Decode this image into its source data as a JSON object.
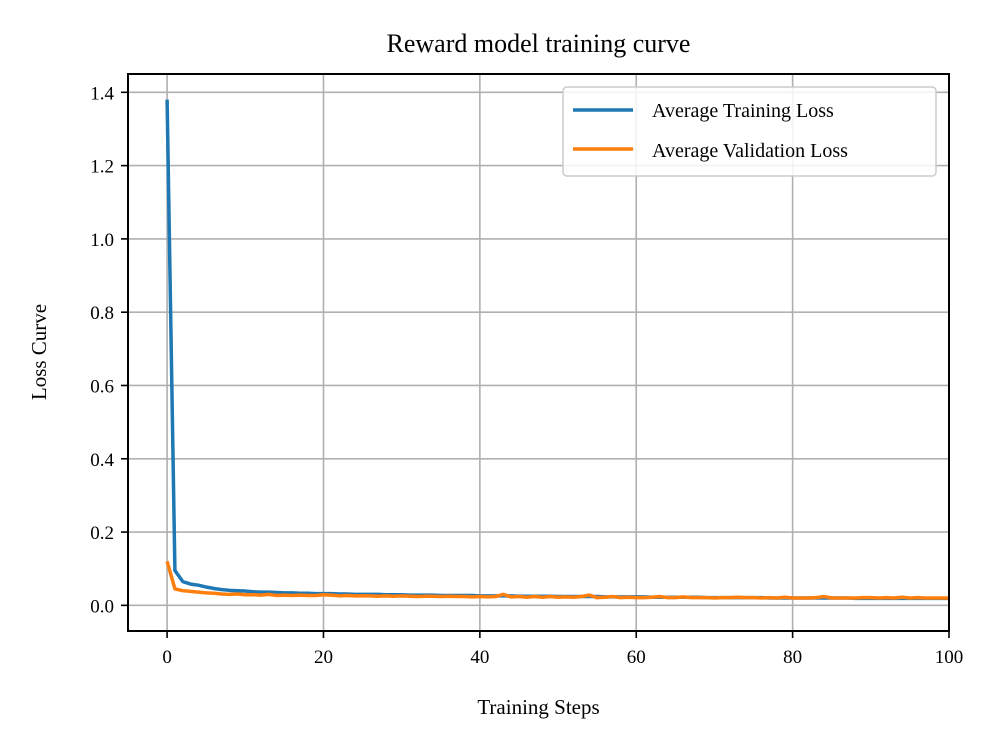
{
  "chart_data": {
    "type": "line",
    "title": "Reward model training curve",
    "xlabel": "Training Steps",
    "ylabel": "Loss Curve",
    "xlim": [
      -5,
      100
    ],
    "ylim": [
      -0.07,
      1.45
    ],
    "xticks": [
      0,
      20,
      40,
      60,
      80,
      100
    ],
    "yticks": [
      0.0,
      0.2,
      0.4,
      0.6,
      0.8,
      1.0,
      1.2,
      1.4
    ],
    "xtick_labels": [
      "0",
      "20",
      "40",
      "60",
      "80",
      "100"
    ],
    "ytick_labels": [
      "0.0",
      "0.2",
      "0.4",
      "0.6",
      "0.8",
      "1.0",
      "1.2",
      "1.4"
    ],
    "grid": true,
    "legend_position": "top-right",
    "x": [
      0,
      1,
      2,
      3,
      4,
      5,
      6,
      7,
      8,
      9,
      10,
      11,
      12,
      13,
      14,
      15,
      16,
      17,
      18,
      19,
      20,
      21,
      22,
      23,
      24,
      25,
      26,
      27,
      28,
      29,
      30,
      31,
      32,
      33,
      34,
      35,
      36,
      37,
      38,
      39,
      40,
      41,
      42,
      43,
      44,
      45,
      46,
      47,
      48,
      49,
      50,
      51,
      52,
      53,
      54,
      55,
      56,
      57,
      58,
      59,
      60,
      61,
      62,
      63,
      64,
      65,
      66,
      67,
      68,
      69,
      70,
      71,
      72,
      73,
      74,
      75,
      76,
      77,
      78,
      79,
      80,
      81,
      82,
      83,
      84,
      85,
      86,
      87,
      88,
      89,
      90,
      91,
      92,
      93,
      94,
      95,
      96,
      97,
      98,
      99,
      100
    ],
    "series": [
      {
        "name": "Average Training Loss",
        "color": "#1f77b4",
        "values": [
          1.38,
          0.095,
          0.065,
          0.058,
          0.055,
          0.05,
          0.046,
          0.043,
          0.041,
          0.04,
          0.039,
          0.037,
          0.036,
          0.036,
          0.035,
          0.034,
          0.034,
          0.033,
          0.033,
          0.032,
          0.032,
          0.032,
          0.031,
          0.031,
          0.03,
          0.03,
          0.03,
          0.03,
          0.029,
          0.029,
          0.029,
          0.028,
          0.028,
          0.028,
          0.028,
          0.027,
          0.027,
          0.027,
          0.027,
          0.027,
          0.026,
          0.026,
          0.026,
          0.026,
          0.026,
          0.025,
          0.025,
          0.025,
          0.025,
          0.025,
          0.024,
          0.024,
          0.024,
          0.024,
          0.024,
          0.024,
          0.023,
          0.023,
          0.023,
          0.023,
          0.023,
          0.023,
          0.022,
          0.022,
          0.022,
          0.022,
          0.022,
          0.022,
          0.022,
          0.021,
          0.021,
          0.021,
          0.021,
          0.021,
          0.021,
          0.021,
          0.021,
          0.02,
          0.02,
          0.02,
          0.02,
          0.02,
          0.02,
          0.02,
          0.02,
          0.02,
          0.02,
          0.02,
          0.019,
          0.019,
          0.019,
          0.019,
          0.019,
          0.019,
          0.019,
          0.019,
          0.019,
          0.019,
          0.019,
          0.019,
          0.019
        ]
      },
      {
        "name": "Average Validation Loss",
        "color": "#ff7f0e",
        "values": [
          0.12,
          0.045,
          0.04,
          0.038,
          0.036,
          0.034,
          0.033,
          0.031,
          0.03,
          0.031,
          0.029,
          0.029,
          0.028,
          0.03,
          0.027,
          0.028,
          0.027,
          0.028,
          0.027,
          0.027,
          0.029,
          0.028,
          0.026,
          0.027,
          0.026,
          0.026,
          0.026,
          0.025,
          0.026,
          0.025,
          0.026,
          0.025,
          0.024,
          0.025,
          0.025,
          0.024,
          0.025,
          0.024,
          0.024,
          0.023,
          0.024,
          0.023,
          0.024,
          0.03,
          0.023,
          0.024,
          0.022,
          0.024,
          0.022,
          0.024,
          0.022,
          0.023,
          0.022,
          0.024,
          0.028,
          0.021,
          0.022,
          0.024,
          0.021,
          0.022,
          0.021,
          0.021,
          0.022,
          0.024,
          0.021,
          0.021,
          0.023,
          0.021,
          0.021,
          0.021,
          0.02,
          0.021,
          0.021,
          0.022,
          0.021,
          0.021,
          0.02,
          0.021,
          0.02,
          0.022,
          0.02,
          0.02,
          0.02,
          0.021,
          0.024,
          0.02,
          0.02,
          0.02,
          0.02,
          0.021,
          0.021,
          0.02,
          0.021,
          0.02,
          0.022,
          0.02,
          0.021,
          0.02,
          0.02,
          0.02,
          0.02
        ]
      }
    ]
  }
}
